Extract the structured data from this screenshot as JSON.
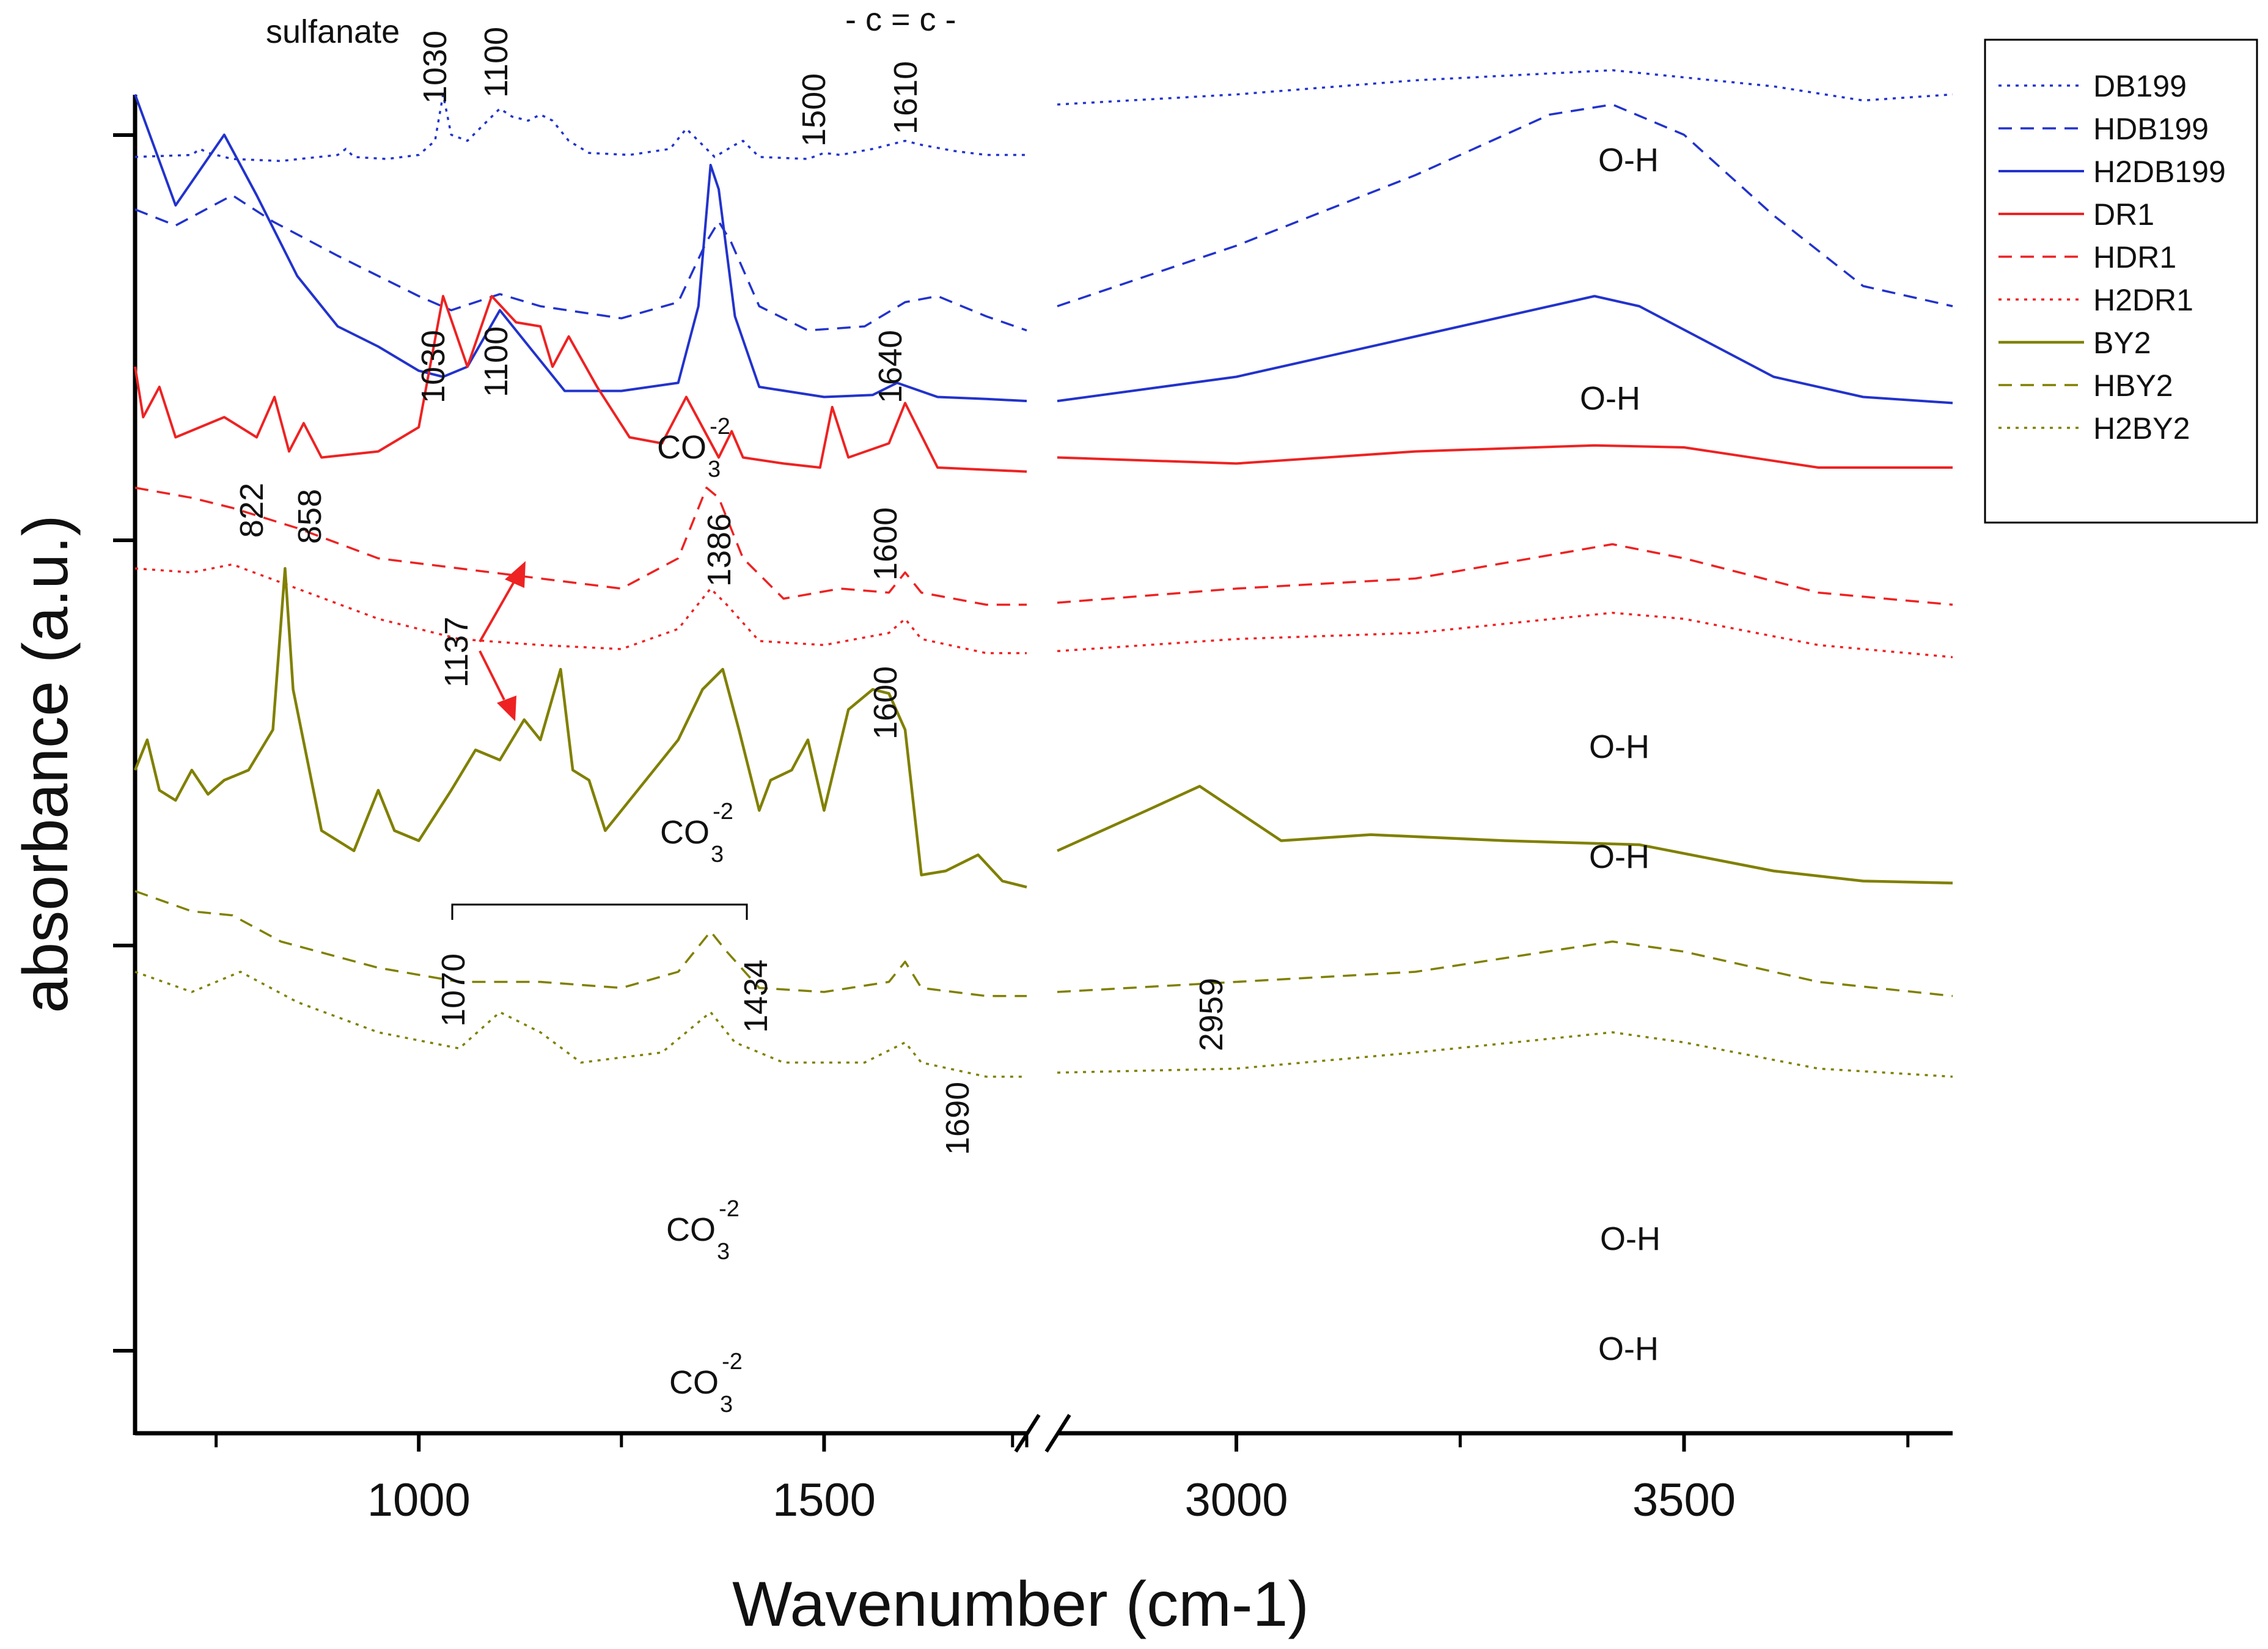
{
  "chart_data": {
    "type": "line",
    "title": "",
    "xlabel": "Wavenumber (cm-1)",
    "ylabel": "absorbance (a.u.)",
    "x_axis_break": [
      1750,
      2800
    ],
    "xlim_left": [
      650,
      1750
    ],
    "xlim_right": [
      2800,
      3800
    ],
    "x_ticks": [
      1000,
      1500,
      3000,
      3500
    ],
    "x_minor_ticks": [
      750,
      1250,
      1750,
      2750,
      3250,
      3750
    ],
    "y_ticks_count": 4,
    "y_tick_labels": [],
    "legend_position": "top-right",
    "series": [
      {
        "name": "DB199",
        "color": "#2233cc",
        "dash": "dotted",
        "width": 3.5,
        "points": [
          [
            650,
            1.04
          ],
          [
            720,
            1.05
          ],
          [
            730,
            1.08
          ],
          [
            740,
            1.06
          ],
          [
            770,
            1.03
          ],
          [
            830,
            1.02
          ],
          [
            900,
            1.05
          ],
          [
            910,
            1.08
          ],
          [
            920,
            1.04
          ],
          [
            960,
            1.03
          ],
          [
            1000,
            1.05
          ],
          [
            1020,
            1.12
          ],
          [
            1030,
            1.35
          ],
          [
            1040,
            1.15
          ],
          [
            1060,
            1.12
          ],
          [
            1080,
            1.2
          ],
          [
            1100,
            1.28
          ],
          [
            1115,
            1.24
          ],
          [
            1135,
            1.22
          ],
          [
            1150,
            1.25
          ],
          [
            1165,
            1.22
          ],
          [
            1185,
            1.12
          ],
          [
            1210,
            1.06
          ],
          [
            1260,
            1.05
          ],
          [
            1310,
            1.08
          ],
          [
            1330,
            1.18
          ],
          [
            1345,
            1.12
          ],
          [
            1365,
            1.04
          ],
          [
            1390,
            1.1
          ],
          [
            1400,
            1.12
          ],
          [
            1420,
            1.04
          ],
          [
            1480,
            1.03
          ],
          [
            1500,
            1.06
          ],
          [
            1520,
            1.05
          ],
          [
            1560,
            1.08
          ],
          [
            1600,
            1.12
          ],
          [
            1620,
            1.1
          ],
          [
            1660,
            1.07
          ],
          [
            1700,
            1.05
          ],
          [
            1750,
            1.05
          ],
          [
            2800,
            1.3
          ],
          [
            3000,
            1.35
          ],
          [
            3200,
            1.42
          ],
          [
            3420,
            1.47
          ],
          [
            3600,
            1.39
          ],
          [
            3700,
            1.32
          ],
          [
            3800,
            1.35
          ]
        ]
      },
      {
        "name": "HDB199",
        "color": "#2233cc",
        "dash": "dashed",
        "width": 3.5,
        "points": [
          [
            650,
            0.78
          ],
          [
            700,
            0.7
          ],
          [
            770,
            0.85
          ],
          [
            820,
            0.72
          ],
          [
            900,
            0.55
          ],
          [
            1000,
            0.35
          ],
          [
            1040,
            0.28
          ],
          [
            1100,
            0.36
          ],
          [
            1150,
            0.3
          ],
          [
            1250,
            0.24
          ],
          [
            1320,
            0.32
          ],
          [
            1355,
            0.62
          ],
          [
            1370,
            0.72
          ],
          [
            1385,
            0.62
          ],
          [
            1420,
            0.3
          ],
          [
            1480,
            0.18
          ],
          [
            1550,
            0.2
          ],
          [
            1600,
            0.32
          ],
          [
            1640,
            0.35
          ],
          [
            1700,
            0.25
          ],
          [
            1750,
            0.18
          ],
          [
            2800,
            0.3
          ],
          [
            3000,
            0.6
          ],
          [
            3200,
            0.95
          ],
          [
            3350,
            1.25
          ],
          [
            3420,
            1.3
          ],
          [
            3500,
            1.15
          ],
          [
            3600,
            0.75
          ],
          [
            3700,
            0.4
          ],
          [
            3800,
            0.3
          ]
        ]
      }
    ]
  },
  "extra_series": [
    {
      "name": "H2DB199",
      "color": "#2233cc",
      "dash": "solid",
      "width": 4,
      "points": [
        [
          650,
          1.35
        ],
        [
          700,
          0.8
        ],
        [
          760,
          1.15
        ],
        [
          800,
          0.85
        ],
        [
          850,
          0.45
        ],
        [
          900,
          0.2
        ],
        [
          950,
          0.1
        ],
        [
          1000,
          -0.02
        ],
        [
          1030,
          -0.05
        ],
        [
          1060,
          0.0
        ],
        [
          1100,
          0.28
        ],
        [
          1140,
          0.08
        ],
        [
          1180,
          -0.12
        ],
        [
          1250,
          -0.12
        ],
        [
          1320,
          -0.08
        ],
        [
          1345,
          0.3
        ],
        [
          1360,
          1.0
        ],
        [
          1370,
          0.88
        ],
        [
          1390,
          0.25
        ],
        [
          1420,
          -0.1
        ],
        [
          1500,
          -0.15
        ],
        [
          1560,
          -0.14
        ],
        [
          1590,
          -0.08
        ],
        [
          1640,
          -0.15
        ],
        [
          1700,
          -0.16
        ],
        [
          1750,
          -0.17
        ],
        [
          2800,
          -0.17
        ],
        [
          3000,
          -0.05
        ],
        [
          3200,
          0.15
        ],
        [
          3400,
          0.35
        ],
        [
          3450,
          0.3
        ],
        [
          3600,
          -0.05
        ],
        [
          3700,
          -0.15
        ],
        [
          3800,
          -0.18
        ]
      ]
    },
    {
      "name": "DR1",
      "color": "#ee2222",
      "dash": "solid",
      "width": 4,
      "points": [
        [
          650,
          0.0
        ],
        [
          660,
          -0.25
        ],
        [
          680,
          -0.1
        ],
        [
          700,
          -0.35
        ],
        [
          760,
          -0.25
        ],
        [
          800,
          -0.35
        ],
        [
          822,
          -0.15
        ],
        [
          840,
          -0.42
        ],
        [
          858,
          -0.28
        ],
        [
          880,
          -0.45
        ],
        [
          950,
          -0.42
        ],
        [
          1000,
          -0.3
        ],
        [
          1030,
          0.35
        ],
        [
          1060,
          0.0
        ],
        [
          1090,
          0.35
        ],
        [
          1120,
          0.22
        ],
        [
          1150,
          0.2
        ],
        [
          1165,
          0.0
        ],
        [
          1185,
          0.15
        ],
        [
          1220,
          -0.1
        ],
        [
          1260,
          -0.35
        ],
        [
          1300,
          -0.38
        ],
        [
          1330,
          -0.15
        ],
        [
          1350,
          -0.3
        ],
        [
          1370,
          -0.45
        ],
        [
          1386,
          -0.32
        ],
        [
          1400,
          -0.45
        ],
        [
          1450,
          -0.48
        ],
        [
          1495,
          -0.5
        ],
        [
          1510,
          -0.2
        ],
        [
          1530,
          -0.45
        ],
        [
          1580,
          -0.38
        ],
        [
          1600,
          -0.18
        ],
        [
          1615,
          -0.3
        ],
        [
          1640,
          -0.5
        ],
        [
          1750,
          -0.52
        ],
        [
          2800,
          -0.45
        ],
        [
          3000,
          -0.48
        ],
        [
          3200,
          -0.42
        ],
        [
          3400,
          -0.39
        ],
        [
          3500,
          -0.4
        ],
        [
          3650,
          -0.5
        ],
        [
          3800,
          -0.5
        ]
      ]
    },
    {
      "name": "HDR1",
      "color": "#ee2222",
      "dash": "dashed",
      "width": 3.5,
      "points": [
        [
          650,
          -0.6
        ],
        [
          720,
          -0.65
        ],
        [
          770,
          -0.7
        ],
        [
          850,
          -0.8
        ],
        [
          950,
          -0.95
        ],
        [
          1050,
          -1.0
        ],
        [
          1150,
          -1.05
        ],
        [
          1250,
          -1.1
        ],
        [
          1320,
          -0.95
        ],
        [
          1355,
          -0.6
        ],
        [
          1370,
          -0.65
        ],
        [
          1400,
          -0.95
        ],
        [
          1450,
          -1.15
        ],
        [
          1520,
          -1.1
        ],
        [
          1580,
          -1.12
        ],
        [
          1600,
          -1.02
        ],
        [
          1620,
          -1.12
        ],
        [
          1700,
          -1.18
        ],
        [
          1750,
          -1.18
        ],
        [
          2800,
          -1.17
        ],
        [
          3000,
          -1.1
        ],
        [
          3200,
          -1.05
        ],
        [
          3420,
          -0.88
        ],
        [
          3500,
          -0.95
        ],
        [
          3650,
          -1.12
        ],
        [
          3800,
          -1.18
        ]
      ]
    },
    {
      "name": "H2DR1",
      "color": "#ee2222",
      "dash": "dotted",
      "width": 3.5,
      "points": [
        [
          650,
          -1.0
        ],
        [
          720,
          -1.02
        ],
        [
          770,
          -0.98
        ],
        [
          850,
          -1.1
        ],
        [
          950,
          -1.25
        ],
        [
          1050,
          -1.35
        ],
        [
          1150,
          -1.38
        ],
        [
          1250,
          -1.4
        ],
        [
          1320,
          -1.3
        ],
        [
          1360,
          -1.1
        ],
        [
          1380,
          -1.18
        ],
        [
          1420,
          -1.36
        ],
        [
          1500,
          -1.38
        ],
        [
          1580,
          -1.32
        ],
        [
          1600,
          -1.25
        ],
        [
          1620,
          -1.35
        ],
        [
          1700,
          -1.42
        ],
        [
          1750,
          -1.42
        ],
        [
          2800,
          -1.41
        ],
        [
          3000,
          -1.35
        ],
        [
          3200,
          -1.32
        ],
        [
          3420,
          -1.22
        ],
        [
          3500,
          -1.25
        ],
        [
          3650,
          -1.38
        ],
        [
          3800,
          -1.44
        ]
      ]
    },
    {
      "name": "BY2",
      "color": "#808000",
      "dash": "solid",
      "width": 4.5,
      "points": [
        [
          650,
          -2.0
        ],
        [
          665,
          -1.85
        ],
        [
          680,
          -2.1
        ],
        [
          700,
          -2.15
        ],
        [
          720,
          -2.0
        ],
        [
          740,
          -2.12
        ],
        [
          760,
          -2.05
        ],
        [
          790,
          -2.0
        ],
        [
          820,
          -1.8
        ],
        [
          835,
          -1.0
        ],
        [
          845,
          -1.6
        ],
        [
          880,
          -2.3
        ],
        [
          920,
          -2.4
        ],
        [
          950,
          -2.1
        ],
        [
          970,
          -2.3
        ],
        [
          1000,
          -2.35
        ],
        [
          1040,
          -2.1
        ],
        [
          1070,
          -1.9
        ],
        [
          1100,
          -1.95
        ],
        [
          1130,
          -1.75
        ],
        [
          1150,
          -1.85
        ],
        [
          1175,
          -1.5
        ],
        [
          1190,
          -2.0
        ],
        [
          1210,
          -2.05
        ],
        [
          1230,
          -2.3
        ],
        [
          1260,
          -2.15
        ],
        [
          1290,
          -2.0
        ],
        [
          1320,
          -1.85
        ],
        [
          1350,
          -1.6
        ],
        [
          1375,
          -1.5
        ],
        [
          1395,
          -1.8
        ],
        [
          1420,
          -2.2
        ],
        [
          1434,
          -2.05
        ],
        [
          1460,
          -2.0
        ],
        [
          1480,
          -1.85
        ],
        [
          1500,
          -2.2
        ],
        [
          1530,
          -1.7
        ],
        [
          1560,
          -1.6
        ],
        [
          1580,
          -1.62
        ],
        [
          1600,
          -1.8
        ],
        [
          1620,
          -2.52
        ],
        [
          1650,
          -2.5
        ],
        [
          1690,
          -2.42
        ],
        [
          1720,
          -2.55
        ],
        [
          1750,
          -2.58
        ],
        [
          2800,
          -2.4
        ],
        [
          2900,
          -2.2
        ],
        [
          2959,
          -2.08
        ],
        [
          3050,
          -2.35
        ],
        [
          3150,
          -2.32
        ],
        [
          3300,
          -2.35
        ],
        [
          3450,
          -2.37
        ],
        [
          3600,
          -2.5
        ],
        [
          3700,
          -2.55
        ],
        [
          3800,
          -2.56
        ]
      ]
    },
    {
      "name": "HBY2",
      "color": "#808000",
      "dash": "dashed",
      "width": 3.5,
      "points": [
        [
          650,
          -2.6
        ],
        [
          720,
          -2.7
        ],
        [
          770,
          -2.72
        ],
        [
          830,
          -2.85
        ],
        [
          950,
          -2.98
        ],
        [
          1050,
          -3.05
        ],
        [
          1150,
          -3.05
        ],
        [
          1250,
          -3.08
        ],
        [
          1320,
          -3.0
        ],
        [
          1360,
          -2.8
        ],
        [
          1380,
          -2.9
        ],
        [
          1420,
          -3.08
        ],
        [
          1500,
          -3.1
        ],
        [
          1580,
          -3.05
        ],
        [
          1600,
          -2.95
        ],
        [
          1620,
          -3.08
        ],
        [
          1700,
          -3.12
        ],
        [
          1750,
          -3.12
        ],
        [
          2800,
          -3.1
        ],
        [
          3000,
          -3.05
        ],
        [
          3200,
          -3.0
        ],
        [
          3420,
          -2.85
        ],
        [
          3500,
          -2.9
        ],
        [
          3650,
          -3.05
        ],
        [
          3800,
          -3.12
        ]
      ]
    },
    {
      "name": "H2BY2",
      "color": "#808000",
      "dash": "dotted",
      "width": 3.5,
      "points": [
        [
          650,
          -3.0
        ],
        [
          720,
          -3.1
        ],
        [
          780,
          -3.0
        ],
        [
          850,
          -3.15
        ],
        [
          950,
          -3.3
        ],
        [
          1050,
          -3.38
        ],
        [
          1100,
          -3.2
        ],
        [
          1150,
          -3.3
        ],
        [
          1200,
          -3.45
        ],
        [
          1300,
          -3.4
        ],
        [
          1360,
          -3.2
        ],
        [
          1390,
          -3.35
        ],
        [
          1450,
          -3.45
        ],
        [
          1550,
          -3.45
        ],
        [
          1600,
          -3.35
        ],
        [
          1620,
          -3.45
        ],
        [
          1700,
          -3.52
        ],
        [
          1750,
          -3.52
        ],
        [
          2800,
          -3.5
        ],
        [
          3000,
          -3.48
        ],
        [
          3200,
          -3.4
        ],
        [
          3420,
          -3.3
        ],
        [
          3500,
          -3.35
        ],
        [
          3650,
          -3.48
        ],
        [
          3800,
          -3.52
        ]
      ]
    }
  ],
  "annotations": {
    "sulfanate": "sulfanate",
    "a1030_top": "1030",
    "a1100_top": "1100",
    "a1500": "1500",
    "a1610": "1610",
    "cc": "- c = c -",
    "a1030_mid": "1030",
    "a1100_mid": "1100",
    "a1640": "1640",
    "co3_1_main": "CO",
    "co3_1_sub": "3",
    "co3_1_sup": "-2",
    "oh_1": "O-H",
    "oh_2": "O-H",
    "a822": "822",
    "a858": "858",
    "a1386": "1386",
    "a1600_1": "1600",
    "a1137": "1137",
    "a1600_2": "1600",
    "oh_3": "O-H",
    "co3_2_main": "CO",
    "co3_2_sub": "3",
    "co3_2_sup": "-2",
    "oh_4": "O-H",
    "a1070": "1070",
    "a1434": "1434",
    "a2959": "2959",
    "a1690": "1690",
    "co3_3_main": "CO",
    "co3_3_sub": "3",
    "co3_3_sup": "-2",
    "oh_5": "O-H",
    "co3_4_main": "CO",
    "co3_4_sub": "3",
    "co3_4_sup": "-2",
    "oh_6": "O-H"
  },
  "arrow_color": "#ee2222"
}
